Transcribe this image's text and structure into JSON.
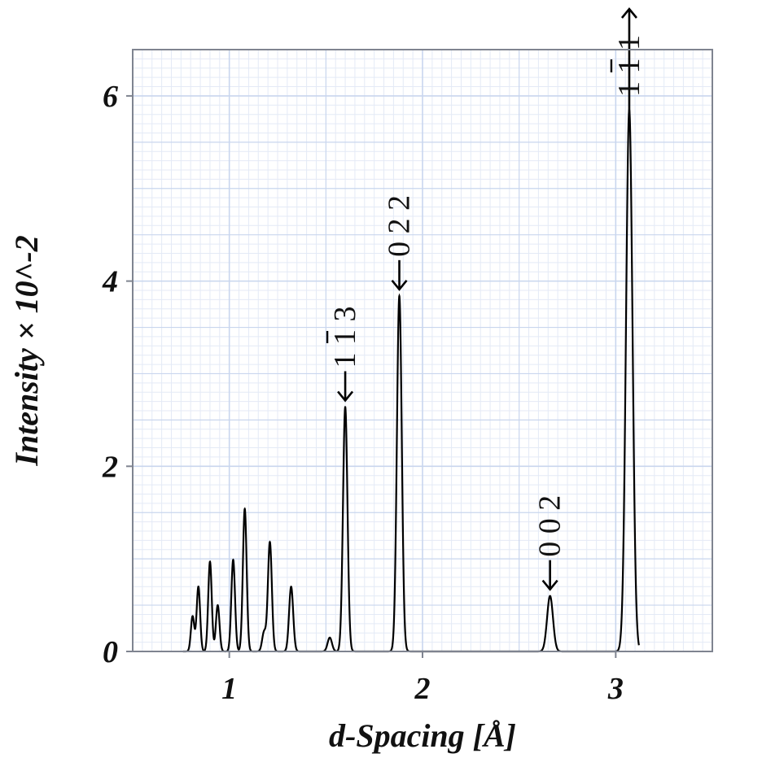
{
  "chart_data": {
    "type": "line",
    "xlabel": "d-Spacing [Å]",
    "ylabel": "Intensity × 10^-2",
    "xlim": [
      0.5,
      3.5
    ],
    "ylim": [
      0,
      6.5
    ],
    "x_ticks": [
      {
        "value": 1,
        "label": "1"
      },
      {
        "value": 2,
        "label": "2"
      },
      {
        "value": 3,
        "label": "3"
      }
    ],
    "y_ticks": [
      {
        "value": 0,
        "label": "0"
      },
      {
        "value": 2,
        "label": "2"
      },
      {
        "value": 4,
        "label": "4"
      },
      {
        "value": 6,
        "label": "6"
      }
    ],
    "grid": true,
    "series": [
      {
        "peaks": [
          {
            "x": 0.81,
            "y": 0.38
          },
          {
            "x": 0.84,
            "y": 0.7
          },
          {
            "x": 0.9,
            "y": 0.97
          },
          {
            "x": 0.94,
            "y": 0.5
          },
          {
            "x": 1.02,
            "y": 0.99
          },
          {
            "x": 1.08,
            "y": 1.54
          },
          {
            "x": 1.18,
            "y": 0.21
          },
          {
            "x": 1.21,
            "y": 1.18
          },
          {
            "x": 1.32,
            "y": 0.7
          },
          {
            "x": 1.52,
            "y": 0.15
          },
          {
            "x": 1.6,
            "y": 2.64
          },
          {
            "x": 1.88,
            "y": 3.84
          },
          {
            "x": 2.66,
            "y": 0.6
          },
          {
            "x": 3.07,
            "y": 5.85
          }
        ]
      }
    ],
    "annotations": [
      {
        "x": 1.6,
        "y": 2.64,
        "text": "1 1 3",
        "bar_char_index": 1,
        "arrow": "down"
      },
      {
        "x": 1.88,
        "y": 3.84,
        "text": "0 2 2",
        "bar_char_index": -1,
        "arrow": "down"
      },
      {
        "x": 2.66,
        "y": 0.6,
        "text": "0 0 2",
        "bar_char_index": -1,
        "arrow": "down"
      },
      {
        "x": 3.07,
        "y": 5.85,
        "text": "1 1 1",
        "bar_char_index": 1,
        "arrow": "up"
      }
    ],
    "colors": {
      "line": "#000000",
      "grid_major": "#c9d6ee",
      "grid_minor": "#e4eaf6",
      "frame": "#7f8490"
    }
  }
}
